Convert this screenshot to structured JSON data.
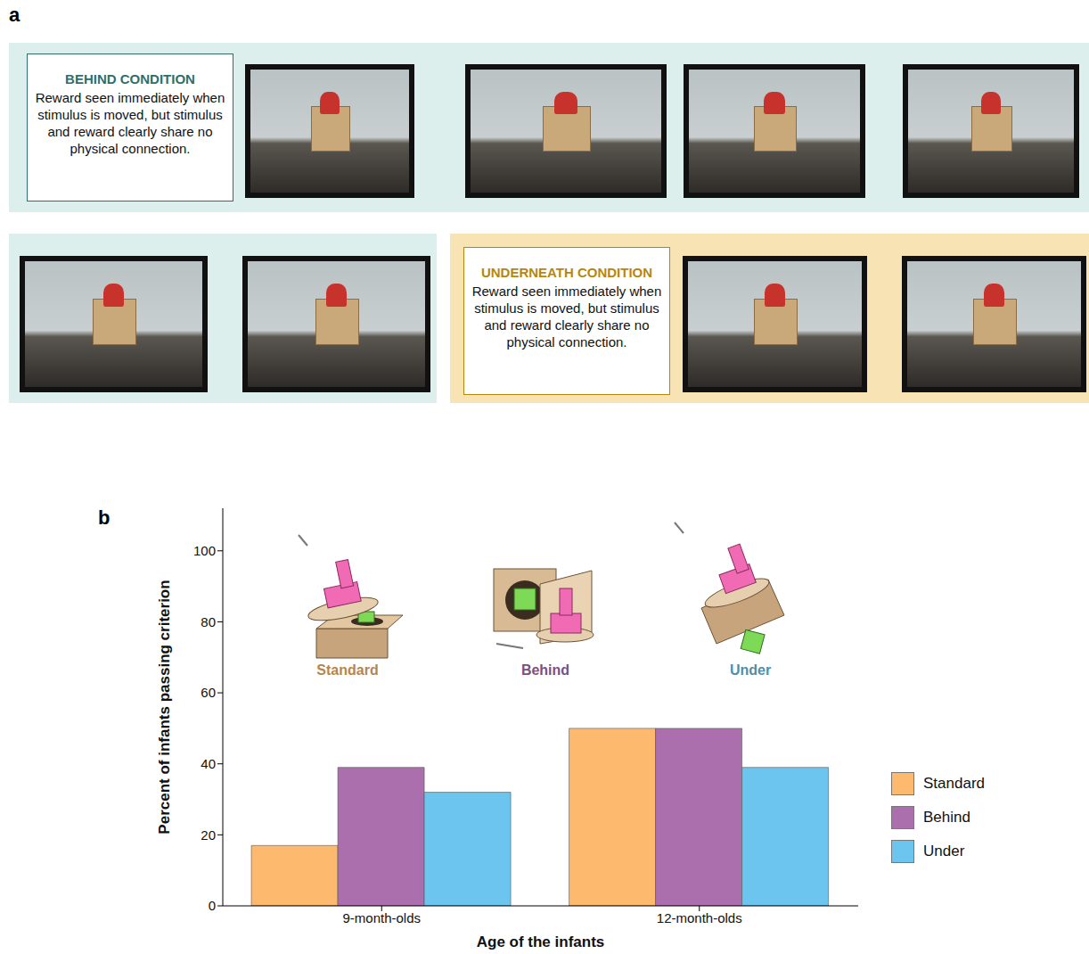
{
  "panels": {
    "a": {
      "label": "a",
      "conditions": [
        {
          "title": "BEHIND CONDITION",
          "text": "Reward seen immediately when stimulus is moved, but stimulus and reward clearly share no physical connection."
        },
        {
          "title": "UNDERNEATH CONDITION",
          "text": "Reward seen immediately when stimulus is moved, but stimulus and reward clearly share no physical connection."
        }
      ]
    },
    "b": {
      "label": "b"
    }
  },
  "chart_data": {
    "type": "bar",
    "categories": [
      "9-month-olds",
      "12-month-olds"
    ],
    "series": [
      {
        "name": "Standard",
        "color": "#fdb96e",
        "values": [
          17,
          50
        ]
      },
      {
        "name": "Behind",
        "color": "#ac6fae",
        "values": [
          39,
          50
        ]
      },
      {
        "name": "Under",
        "color": "#6cc5ee",
        "values": [
          32,
          39
        ]
      }
    ],
    "x_label": "Age of the infants",
    "y_label": "Percent of infants passing criterion",
    "ylim": [
      0,
      112
    ],
    "yticks": [
      0,
      20,
      40,
      60,
      80,
      100
    ],
    "grid": false,
    "legend": "right"
  }
}
